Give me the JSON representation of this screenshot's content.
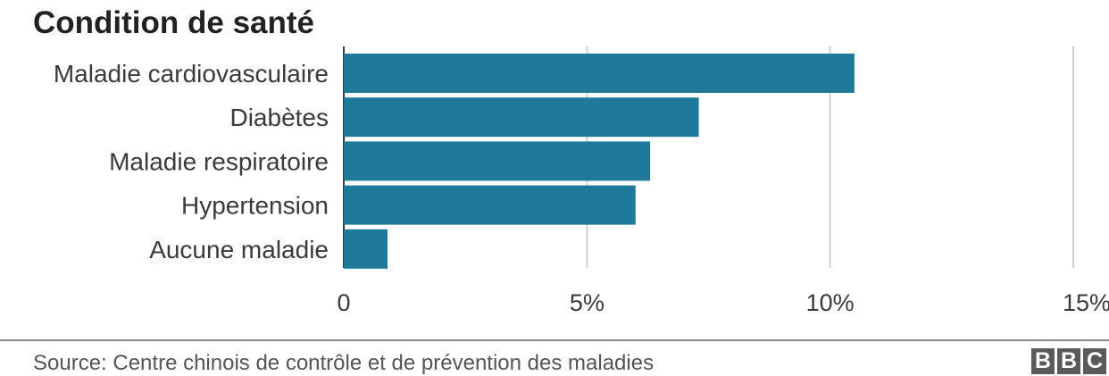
{
  "chart_data": {
    "type": "bar",
    "orientation": "horizontal",
    "title": "Condition de santé",
    "categories": [
      "Maladie cardiovasculaire",
      "Diabètes",
      "Maladie respiratoire",
      "Hypertension",
      "Aucune maladie"
    ],
    "values": [
      10.5,
      7.3,
      6.3,
      6.0,
      0.9
    ],
    "xlim": [
      0,
      15
    ],
    "x_ticks": [
      0,
      5,
      10,
      15
    ],
    "x_tick_labels": [
      "0",
      "5%",
      "10%",
      "15%"
    ],
    "xlabel": "",
    "ylabel": "",
    "grid": true,
    "bar_color": "#1f7a99"
  },
  "footer": {
    "source": "Source: Centre chinois de contrôle et de prévention des maladies",
    "logo_letters": [
      "B",
      "B",
      "C"
    ]
  }
}
